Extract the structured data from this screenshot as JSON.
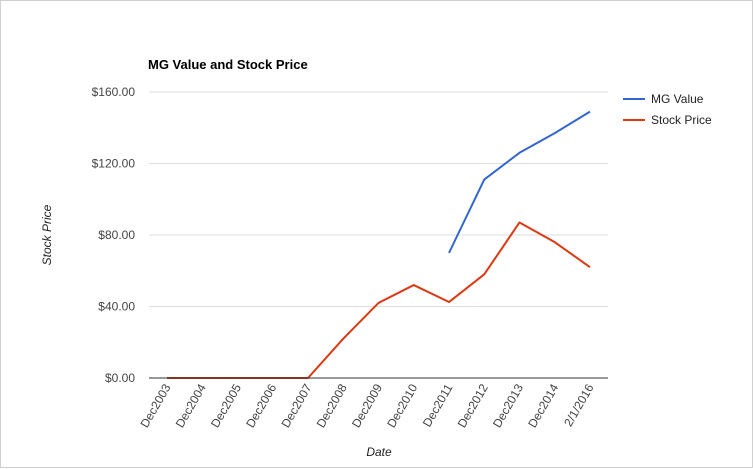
{
  "chart_data": {
    "type": "line",
    "title": "MG Value and Stock Price",
    "xlabel": "Date",
    "ylabel": "Stock Price",
    "categories": [
      "Dec2003",
      "Dec2004",
      "Dec2005",
      "Dec2006",
      "Dec2007",
      "Dec2008",
      "Dec2009",
      "Dec2010",
      "Dec2011",
      "Dec2012",
      "Dec2013",
      "Dec2014",
      "2/1/2016"
    ],
    "ylim": [
      0,
      160
    ],
    "yticks": [
      0,
      40,
      80,
      120,
      160
    ],
    "ytick_labels": [
      "$0.00",
      "$40.00",
      "$80.00",
      "$120.00",
      "$160.00"
    ],
    "grid": true,
    "legend_position": "right",
    "series": [
      {
        "name": "MG Value",
        "color": "#3366cc",
        "values": [
          null,
          null,
          null,
          null,
          null,
          null,
          null,
          null,
          70,
          111,
          126,
          137,
          149
        ]
      },
      {
        "name": "Stock Price",
        "color": "#dc3912",
        "values": [
          0,
          0,
          0,
          0,
          0,
          22,
          42,
          52,
          42.5,
          58,
          87,
          76,
          62
        ]
      }
    ]
  }
}
